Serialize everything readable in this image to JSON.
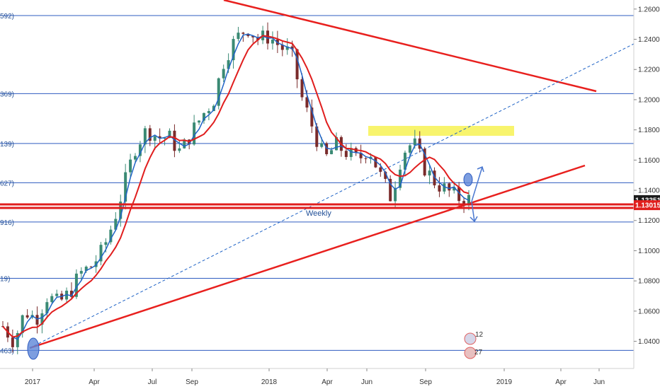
{
  "chart_data": {
    "type": "candlestick",
    "x": [
      "2017",
      "Apr",
      "Jul",
      "Sep",
      "2018",
      "Apr",
      "Jun",
      "Sep",
      "2019",
      "Apr",
      "Jun"
    ],
    "y_ticks": [
      "1.26000",
      "1.24000",
      "1.22000",
      "1.20000",
      "1.18000",
      "1.16000",
      "1.14000",
      "1.12000",
      "1.10000",
      "1.08000",
      "1.06000",
      "1.04000"
    ],
    "ylim": [
      1.022,
      1.266
    ],
    "horizontal_levels": [
      {
        "value": 1.2557,
        "label": "592)"
      },
      {
        "value": 1.204,
        "label": "369)"
      },
      {
        "value": 1.171,
        "label": "139)"
      },
      {
        "value": 1.145,
        "label": "627)"
      },
      {
        "value": 1.119,
        "label": "916)"
      },
      {
        "value": 1.0817,
        "label": "19)"
      },
      {
        "value": 1.034,
        "label": "463)"
      }
    ],
    "price_tags": [
      {
        "value": 1.13351,
        "text": "1.13351",
        "color": "#1b1b1b"
      },
      {
        "value": 1.13015,
        "text": "1.13015",
        "color": "#e0201e"
      }
    ],
    "annotations": {
      "weekly": "Weekly",
      "badge_top": "12",
      "badge_bottom": "27"
    },
    "close_series": [
      [
        1.05,
        1.04,
        1.06,
        1.055,
        1.07,
        1.065,
        1.072,
        1.085,
        1.09,
        1.1,
        1.12,
        1.145,
        1.17,
        1.18,
        1.175,
        1.175,
        1.165,
        1.178,
        1.19,
        1.2,
        1.228,
        1.24,
        1.248,
        1.24,
        1.242,
        1.235,
        1.23,
        1.2,
        1.18,
        1.16,
        1.17,
        1.165,
        1.16,
        1.168,
        1.15,
        1.135,
        1.165,
        1.172,
        1.155,
        1.145,
        1.14,
        1.135,
        1.134
      ]
    ],
    "colors": {
      "up": "#3a8a74",
      "down": "#7a2b2b",
      "ma_red": "#e01e1e",
      "ma_blue": "#1f63c6",
      "levels": "#2f5cc0",
      "trend": "#e8201e",
      "highlight": "#f6f03c"
    }
  }
}
